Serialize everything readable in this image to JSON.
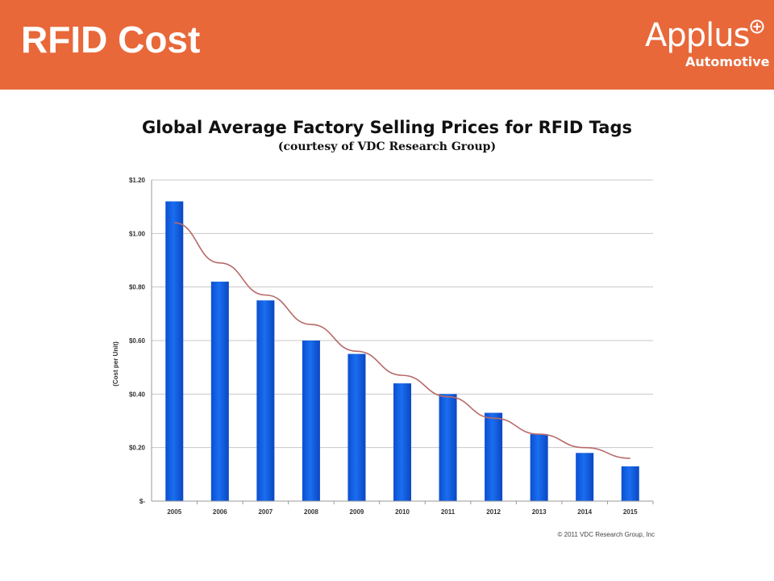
{
  "header": {
    "title": "RFID Cost",
    "background_color": "#e8683a"
  },
  "logo": {
    "wordmark": "Applus",
    "subtitle": "Automotive",
    "plus_icon": "circled-plus-icon"
  },
  "chart_data": {
    "type": "bar",
    "title": "Global Average Factory Selling Prices for RFID Tags",
    "subtitle": "(courtesy of VDC Research Group)",
    "xlabel": "",
    "ylabel": "(Cost per Unit)",
    "categories": [
      "2005",
      "2006",
      "2007",
      "2008",
      "2009",
      "2010",
      "2011",
      "2012",
      "2013",
      "2014",
      "2015"
    ],
    "values": [
      1.12,
      0.82,
      0.75,
      0.6,
      0.55,
      0.44,
      0.4,
      0.33,
      0.25,
      0.18,
      0.13
    ],
    "trendline": {
      "type": "exponential",
      "values": [
        1.04,
        0.89,
        0.77,
        0.66,
        0.56,
        0.47,
        0.39,
        0.31,
        0.25,
        0.2,
        0.16
      ],
      "color": "#b86a6a"
    },
    "ylim": [
      0,
      1.2
    ],
    "yticks": [
      0,
      0.2,
      0.4,
      0.6,
      0.8,
      1.0,
      1.2
    ],
    "ytick_labels": [
      "$-",
      "$0.20",
      "$0.40",
      "$0.60",
      "$0.80",
      "$1.00",
      "$1.20"
    ],
    "grid": true,
    "bar_color": "#1a6ef0",
    "legend": "none",
    "copyright": "© 2011 VDC Research Group, Inc"
  }
}
